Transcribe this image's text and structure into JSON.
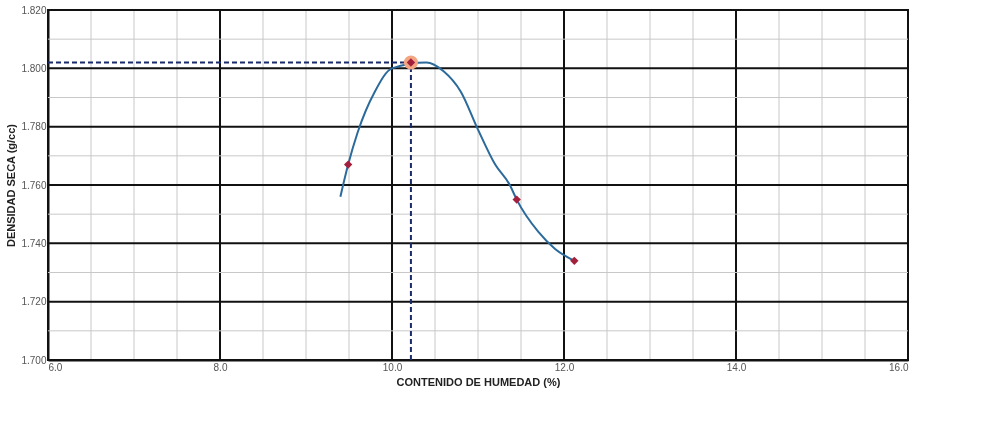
{
  "chart_data": {
    "type": "scatter",
    "xlabel": "CONTENIDO DE HUMEDAD (%)",
    "ylabel": "DENSIDAD SECA (g/cc)",
    "xlim": [
      6.0,
      16.0
    ],
    "xticks": [
      {
        "value": 6.0,
        "label": "6.0"
      },
      {
        "value": 6.5,
        "label": null
      },
      {
        "value": 7.0,
        "label": null
      },
      {
        "value": 7.5,
        "label": null
      },
      {
        "value": 8.0,
        "label": "8.0"
      },
      {
        "value": 8.5,
        "label": null
      },
      {
        "value": 9.0,
        "label": null
      },
      {
        "value": 9.5,
        "label": null
      },
      {
        "value": 10.0,
        "label": "10.0"
      },
      {
        "value": 10.5,
        "label": null
      },
      {
        "value": 11.0,
        "label": null
      },
      {
        "value": 11.5,
        "label": null
      },
      {
        "value": 12.0,
        "label": "12.0"
      },
      {
        "value": 12.5,
        "label": null
      },
      {
        "value": 13.0,
        "label": null
      },
      {
        "value": 13.5,
        "label": null
      },
      {
        "value": 14.0,
        "label": "14.0"
      },
      {
        "value": 14.5,
        "label": null
      },
      {
        "value": 15.0,
        "label": null
      },
      {
        "value": 15.5,
        "label": null
      },
      {
        "value": 16.0,
        "label": "16.0"
      }
    ],
    "ylim": [
      1.7,
      1.82
    ],
    "yticks": [
      {
        "value": 1.7,
        "label": "1.700"
      },
      {
        "value": 1.71,
        "label": null
      },
      {
        "value": 1.72,
        "label": "1.720"
      },
      {
        "value": 1.73,
        "label": null
      },
      {
        "value": 1.74,
        "label": "1.740"
      },
      {
        "value": 1.75,
        "label": null
      },
      {
        "value": 1.76,
        "label": "1.760"
      },
      {
        "value": 1.77,
        "label": null
      },
      {
        "value": 1.78,
        "label": "1.780"
      },
      {
        "value": 1.79,
        "label": null
      },
      {
        "value": 1.8,
        "label": "1.800"
      },
      {
        "value": 1.81,
        "label": null
      },
      {
        "value": 1.82,
        "label": "1.820"
      }
    ],
    "grid": true,
    "series": [
      {
        "type": "line",
        "color": "#2b6a9a",
        "marker": "none",
        "line_style": "solid",
        "x": [
          9.4,
          9.49,
          9.6,
          9.8,
          10.0,
          10.4,
          10.6,
          10.8,
          11.0,
          11.2,
          11.37,
          11.45,
          11.7,
          11.9,
          12.12
        ],
        "values": [
          1.756,
          1.767,
          1.778,
          1.792,
          1.8,
          1.802,
          1.799,
          1.792,
          1.779,
          1.767,
          1.76,
          1.755,
          1.744,
          1.738,
          1.734
        ]
      },
      {
        "color": "#f4a582",
        "marker": "circle",
        "x": [
          10.22
        ],
        "values": [
          1.802
        ]
      },
      {
        "color": "#a3203c",
        "marker": "diamond",
        "x": [
          9.49,
          10.22,
          11.45,
          12.12
        ],
        "values": [
          1.767,
          1.802,
          1.755,
          1.734
        ]
      }
    ],
    "ref_lines": [
      {
        "axis": "y",
        "value": 1.802,
        "color": "#1a2a6c",
        "line_style": "dashed"
      },
      {
        "axis": "x",
        "value": 10.22,
        "color": "#1a2a6c",
        "line_style": "dashed"
      }
    ]
  }
}
